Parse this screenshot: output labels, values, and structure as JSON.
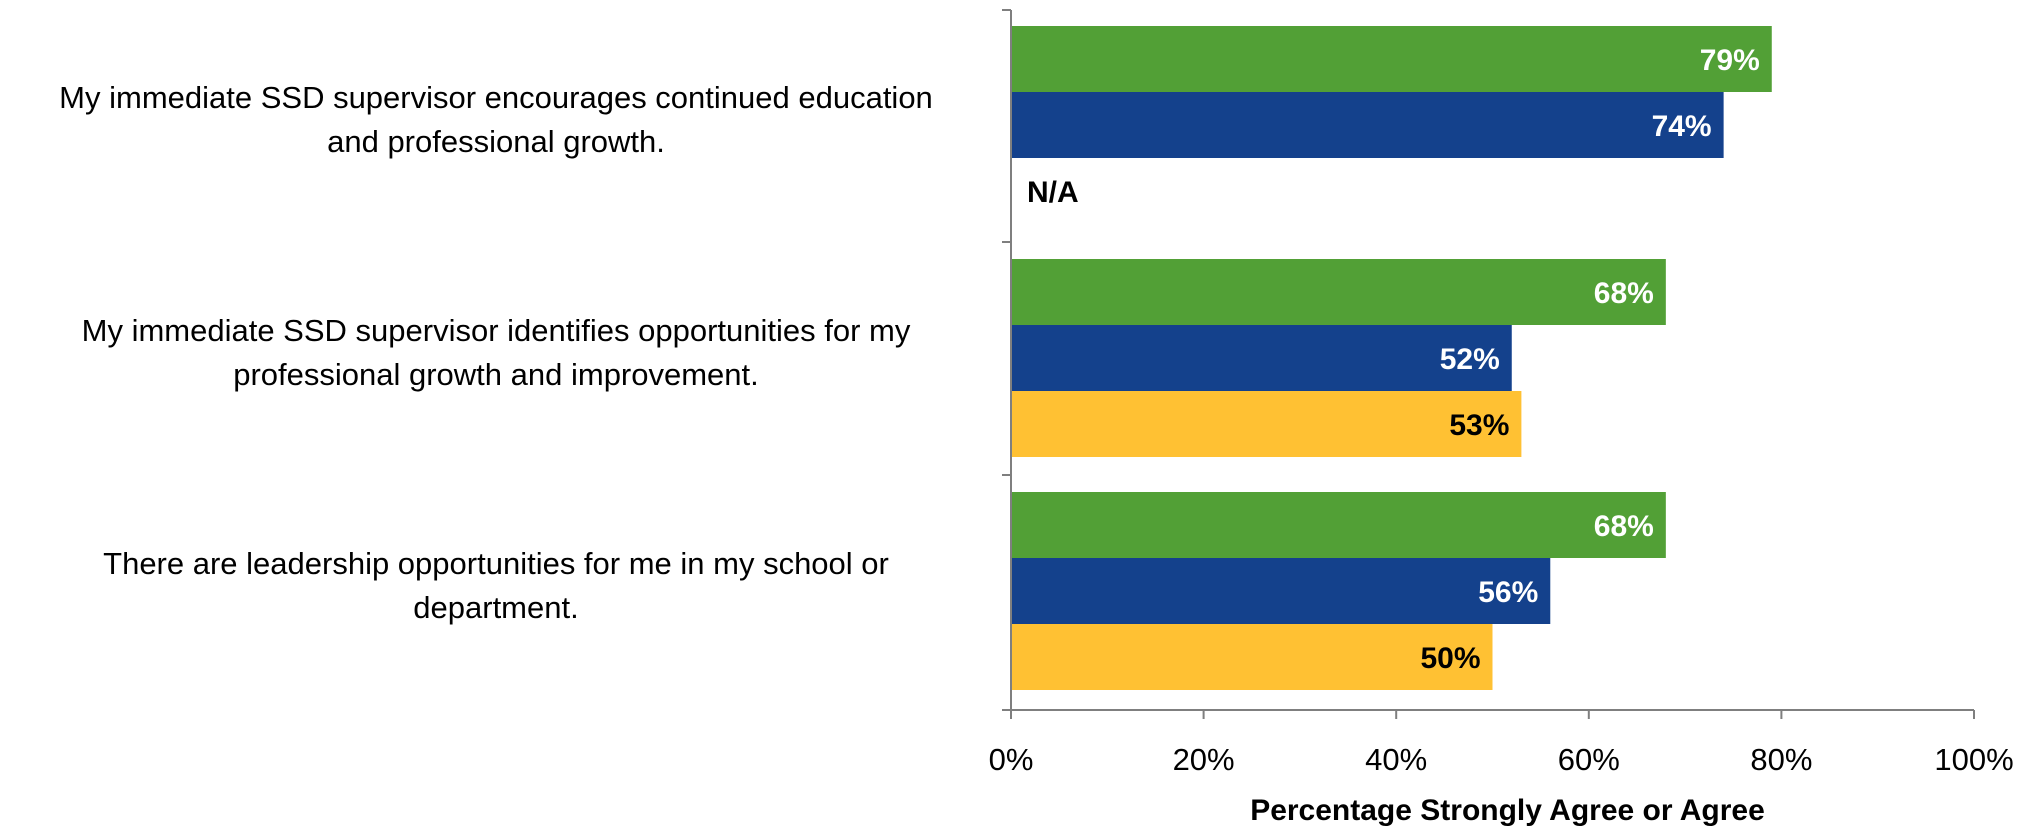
{
  "chart_data": {
    "type": "bar",
    "orientation": "horizontal",
    "title": "",
    "xlabel": "Percentage Strongly Agree or Agree",
    "ylabel": "",
    "xlim": [
      0,
      100
    ],
    "x_ticks": [
      "0%",
      "20%",
      "40%",
      "60%",
      "80%",
      "100%"
    ],
    "grid": false,
    "legend": "none",
    "categories": [
      "My immediate SSD supervisor encourages continued education and professional growth.",
      "My immediate SSD supervisor identifies opportunities for my professional growth and improvement.",
      "There are leadership opportunities for me in my school or department."
    ],
    "category_lines": [
      [
        "My immediate SSD supervisor encourages continued education",
        "and professional growth."
      ],
      [
        "My immediate SSD supervisor identifies opportunities for my",
        "professional growth and improvement."
      ],
      [
        "There are leadership opportunities for me in my school or",
        "department."
      ]
    ],
    "series": [
      {
        "color": "#52A036",
        "label_color": "#FFFFFF",
        "values": [
          79,
          68,
          68
        ],
        "labels": [
          "79%",
          "68%",
          "68%"
        ]
      },
      {
        "color": "#14418C",
        "label_color": "#FFFFFF",
        "values": [
          74,
          52,
          56
        ],
        "labels": [
          "74%",
          "52%",
          "56%"
        ]
      },
      {
        "color": "#FFC133",
        "label_color": "#000000",
        "values": [
          null,
          53,
          50
        ],
        "labels": [
          "N/A",
          "53%",
          "50%"
        ]
      }
    ]
  }
}
